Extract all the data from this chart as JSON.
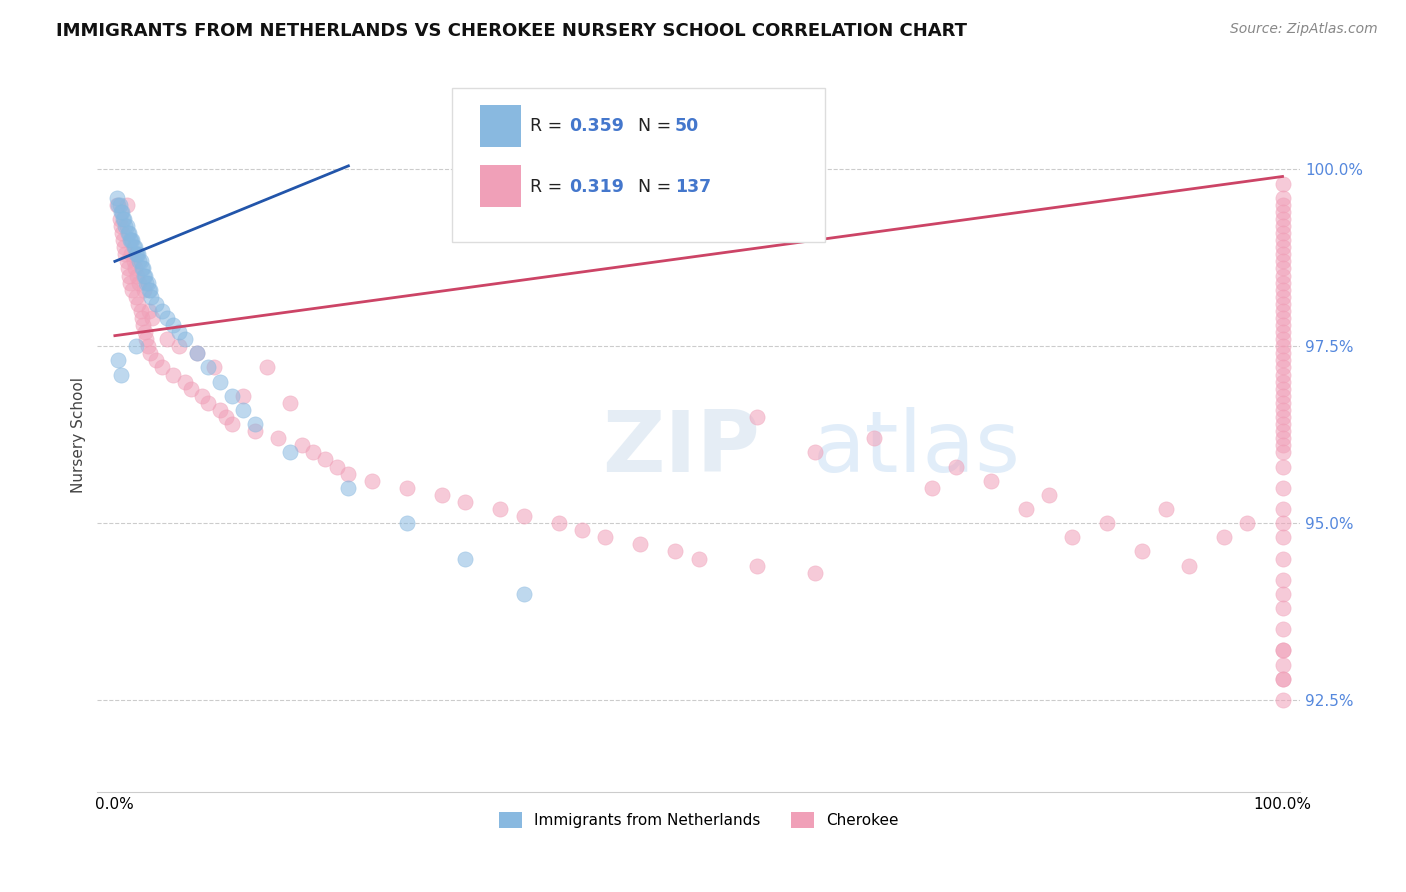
{
  "title": "IMMIGRANTS FROM NETHERLANDS VS CHEROKEE NURSERY SCHOOL CORRELATION CHART",
  "source": "Source: ZipAtlas.com",
  "ylabel": "Nursery School",
  "legend_blue_r": "R = 0.359",
  "legend_blue_n": "N = 50",
  "legend_pink_r": "R = 0.319",
  "legend_pink_n": "N = 137",
  "legend_label_blue": "Immigrants from Netherlands",
  "legend_label_pink": "Cherokee",
  "yticks": [
    92.5,
    95.0,
    97.5,
    100.0
  ],
  "ytick_labels": [
    "92.5%",
    "95.0%",
    "97.5%",
    "100.0%"
  ],
  "ymin": 91.2,
  "ymax": 101.3,
  "xmin": -1.5,
  "xmax": 101.5,
  "blue_color": "#89b9e0",
  "pink_color": "#f0a0b8",
  "blue_line_color": "#2255aa",
  "pink_line_color": "#cc4466",
  "background_color": "#ffffff",
  "title_fontsize": 13,
  "blue_scatter_x": [
    0.2,
    0.3,
    0.4,
    0.5,
    0.6,
    0.7,
    0.8,
    0.9,
    1.0,
    1.1,
    1.2,
    1.3,
    1.4,
    1.5,
    1.6,
    1.7,
    1.8,
    1.9,
    2.0,
    2.1,
    2.2,
    2.3,
    2.4,
    2.5,
    2.6,
    2.7,
    2.8,
    2.9,
    3.0,
    3.1,
    3.5,
    4.0,
    4.5,
    5.0,
    5.5,
    6.0,
    7.0,
    8.0,
    9.0,
    10.0,
    11.0,
    12.0,
    15.0,
    20.0,
    25.0,
    30.0,
    35.0,
    0.3,
    0.5,
    1.8
  ],
  "blue_scatter_y": [
    99.6,
    99.5,
    99.5,
    99.4,
    99.4,
    99.3,
    99.3,
    99.2,
    99.2,
    99.1,
    99.1,
    99.0,
    99.0,
    99.0,
    98.9,
    98.9,
    98.8,
    98.8,
    98.8,
    98.7,
    98.7,
    98.6,
    98.6,
    98.5,
    98.5,
    98.4,
    98.4,
    98.3,
    98.3,
    98.2,
    98.1,
    98.0,
    97.9,
    97.8,
    97.7,
    97.6,
    97.4,
    97.2,
    97.0,
    96.8,
    96.6,
    96.4,
    96.0,
    95.5,
    95.0,
    94.5,
    94.0,
    97.3,
    97.1,
    97.5
  ],
  "pink_scatter_x": [
    0.2,
    0.4,
    0.5,
    0.6,
    0.7,
    0.8,
    0.9,
    1.0,
    1.0,
    1.1,
    1.2,
    1.3,
    1.4,
    1.5,
    1.6,
    1.7,
    1.8,
    1.9,
    2.0,
    2.1,
    2.2,
    2.3,
    2.4,
    2.5,
    2.6,
    2.7,
    2.8,
    2.9,
    3.0,
    3.2,
    3.5,
    4.0,
    4.5,
    5.0,
    5.5,
    6.0,
    6.5,
    7.0,
    7.5,
    8.0,
    8.5,
    9.0,
    9.5,
    10.0,
    11.0,
    12.0,
    13.0,
    14.0,
    15.0,
    16.0,
    17.0,
    18.0,
    19.0,
    20.0,
    22.0,
    25.0,
    28.0,
    30.0,
    33.0,
    35.0,
    38.0,
    40.0,
    42.0,
    45.0,
    48.0,
    50.0,
    55.0,
    55.0,
    60.0,
    60.0,
    65.0,
    70.0,
    72.0,
    75.0,
    78.0,
    80.0,
    82.0,
    85.0,
    88.0,
    90.0,
    92.0,
    95.0,
    97.0,
    100.0,
    100.0,
    100.0,
    100.0,
    100.0,
    100.0,
    100.0,
    100.0,
    100.0,
    100.0,
    100.0,
    100.0,
    100.0,
    100.0,
    100.0,
    100.0,
    100.0,
    100.0,
    100.0,
    100.0,
    100.0,
    100.0,
    100.0,
    100.0,
    100.0,
    100.0,
    100.0,
    100.0,
    100.0,
    100.0,
    100.0,
    100.0,
    100.0,
    100.0,
    100.0,
    100.0,
    100.0,
    100.0,
    100.0,
    100.0,
    100.0,
    100.0,
    100.0,
    100.0,
    100.0,
    100.0,
    100.0,
    100.0,
    100.0,
    100.0,
    100.0,
    100.0,
    100.0,
    100.0
  ],
  "pink_scatter_y": [
    99.5,
    99.3,
    99.2,
    99.1,
    99.0,
    98.9,
    98.8,
    99.5,
    98.7,
    98.6,
    98.5,
    98.4,
    98.8,
    98.3,
    98.7,
    98.6,
    98.2,
    98.5,
    98.1,
    98.4,
    98.0,
    97.9,
    97.8,
    98.3,
    97.7,
    97.6,
    97.5,
    98.0,
    97.4,
    97.9,
    97.3,
    97.2,
    97.6,
    97.1,
    97.5,
    97.0,
    96.9,
    97.4,
    96.8,
    96.7,
    97.2,
    96.6,
    96.5,
    96.4,
    96.8,
    96.3,
    97.2,
    96.2,
    96.7,
    96.1,
    96.0,
    95.9,
    95.8,
    95.7,
    95.6,
    95.5,
    95.4,
    95.3,
    95.2,
    95.1,
    95.0,
    94.9,
    94.8,
    94.7,
    94.6,
    94.5,
    94.4,
    96.5,
    94.3,
    96.0,
    96.2,
    95.5,
    95.8,
    95.6,
    95.2,
    95.4,
    94.8,
    95.0,
    94.6,
    95.2,
    94.4,
    94.8,
    95.0,
    99.8,
    99.6,
    99.5,
    99.4,
    99.3,
    99.2,
    99.1,
    99.0,
    98.9,
    98.8,
    98.7,
    98.6,
    98.5,
    98.4,
    98.3,
    98.2,
    98.1,
    98.0,
    97.9,
    97.8,
    97.7,
    97.6,
    97.5,
    97.4,
    97.3,
    97.2,
    97.1,
    97.0,
    96.9,
    96.8,
    96.7,
    96.6,
    96.5,
    96.4,
    96.3,
    96.2,
    96.1,
    96.0,
    95.8,
    95.5,
    95.2,
    95.0,
    94.8,
    94.5,
    94.2,
    94.0,
    93.8,
    93.5,
    93.2,
    93.0,
    92.8,
    92.5,
    92.8,
    93.2
  ],
  "blue_trendline_x": [
    0,
    20
  ],
  "blue_trendline_y": [
    98.7,
    100.05
  ],
  "pink_trendline_x": [
    0,
    100
  ],
  "pink_trendline_y": [
    97.65,
    99.9
  ]
}
